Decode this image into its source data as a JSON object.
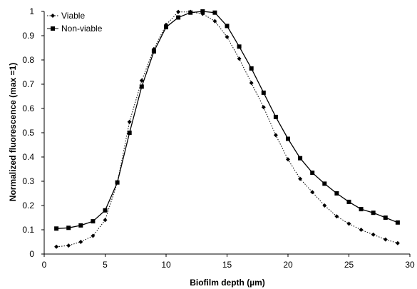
{
  "chart_data": {
    "type": "line",
    "xlabel": "Biofilm depth (µm)",
    "ylabel": "Normalized fluorescence (max =1)",
    "xlim": [
      0,
      30
    ],
    "ylim": [
      0,
      1
    ],
    "xticks": [
      0,
      5,
      10,
      15,
      20,
      25,
      30
    ],
    "yticks": [
      0,
      0.1,
      0.2,
      0.3,
      0.4,
      0.5,
      0.6,
      0.7,
      0.8,
      0.9,
      1
    ],
    "grid": false,
    "legend_position": "top-left",
    "x": [
      1,
      2,
      3,
      4,
      5,
      6,
      7,
      8,
      9,
      10,
      11,
      12,
      13,
      14,
      15,
      16,
      17,
      18,
      19,
      20,
      21,
      22,
      23,
      24,
      25,
      26,
      27,
      28,
      29
    ],
    "series": [
      {
        "name": "Viable",
        "marker": "diamond",
        "line_style": "dotted",
        "color": "#000000",
        "values": [
          0.03,
          0.035,
          0.05,
          0.075,
          0.14,
          0.295,
          0.545,
          0.715,
          0.845,
          0.945,
          0.998,
          0.998,
          0.99,
          0.96,
          0.895,
          0.805,
          0.705,
          0.605,
          0.49,
          0.39,
          0.31,
          0.255,
          0.2,
          0.155,
          0.125,
          0.1,
          0.08,
          0.06,
          0.045
        ]
      },
      {
        "name": "Non-viable",
        "marker": "square",
        "line_style": "solid",
        "color": "#000000",
        "values": [
          0.105,
          0.108,
          0.118,
          0.135,
          0.18,
          0.295,
          0.5,
          0.69,
          0.835,
          0.935,
          0.975,
          0.995,
          1.0,
          0.995,
          0.94,
          0.855,
          0.765,
          0.665,
          0.565,
          0.475,
          0.395,
          0.335,
          0.29,
          0.25,
          0.215,
          0.185,
          0.17,
          0.15,
          0.13
        ]
      }
    ]
  }
}
